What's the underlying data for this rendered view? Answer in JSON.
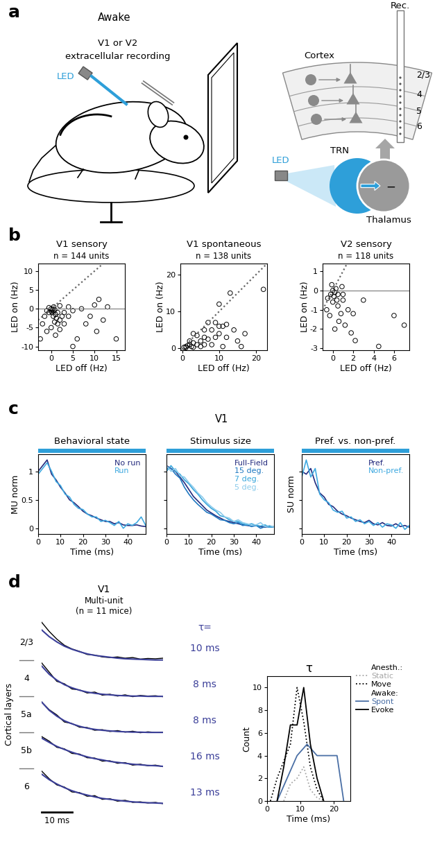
{
  "panel_labels": [
    "a",
    "b",
    "c",
    "d"
  ],
  "diagram": {
    "left": {
      "title": "Awake",
      "subtitle": "V1 or V2",
      "caption": "extracellular recording",
      "led": "LED"
    },
    "right": {
      "electrode": "Rec.",
      "cortex": "Cortex",
      "layers": [
        "2/3",
        "4",
        "5",
        "6"
      ],
      "led": "LED",
      "trn": "TRN",
      "thalamus": "Thalamus",
      "inhibition": "−"
    }
  },
  "chart_data": [
    {
      "type": "scatter",
      "title": "V1 sensory",
      "subtitle": "n = 144 units",
      "x_label": "LED off (Hz)",
      "y_label": "LED on (Hz)",
      "color": "#000000",
      "marker": "o",
      "x": [
        0,
        0.3,
        0.5,
        0.2,
        0.8,
        1,
        0.5,
        1.5,
        1.2,
        2,
        0.8,
        2.5,
        1.5,
        -0.5,
        -1,
        -1.5,
        -2,
        -2.5,
        -1,
        0,
        1,
        2,
        3,
        3,
        4,
        5,
        6,
        5,
        7,
        8,
        9,
        10,
        11,
        10.5,
        12,
        13,
        15,
        4,
        2,
        -0.5,
        0.6,
        0.1
      ],
      "values": [
        0,
        -0.2,
        -0.5,
        -1,
        -0.3,
        -1.5,
        -2,
        -1,
        -2.5,
        -3,
        -3.5,
        -2,
        -4,
        -1,
        -0.5,
        -2,
        -4,
        -8,
        -6,
        -5,
        -7,
        -5.5,
        -1,
        -4,
        -2,
        -10,
        -8,
        -0.5,
        0,
        -4,
        -2,
        1,
        2.5,
        -6,
        -3,
        0.5,
        -8,
        0.5,
        0.8,
        0.3,
        0.5,
        -0.6
      ],
      "hlines": [
        0
      ],
      "xlim": [
        -3,
        17
      ],
      "ylim": [
        -11,
        12
      ],
      "xticks": [
        0,
        5,
        10,
        15
      ],
      "yticks": [
        -10,
        -5,
        0,
        5,
        10
      ]
    },
    {
      "type": "scatter",
      "title": "V1 spontaneous",
      "subtitle": "n = 138 units",
      "x_label": "LED off (Hz)",
      "y_label": "LED on (Hz)",
      "color": "#000000",
      "marker": "o",
      "x": [
        0.5,
        1,
        1.5,
        2,
        1,
        2.5,
        3,
        3,
        4,
        5,
        5,
        6,
        6,
        7,
        7,
        8,
        8,
        9,
        9,
        10,
        10,
        11,
        12,
        12,
        13,
        14,
        15,
        16,
        17,
        22,
        4,
        2,
        6,
        3,
        10,
        11
      ],
      "values": [
        0.3,
        0.5,
        0.8,
        1,
        0.2,
        0.5,
        1.5,
        0.3,
        1,
        2,
        0.5,
        3,
        1,
        2.5,
        7,
        5,
        1,
        3,
        7,
        4,
        6,
        0.5,
        3,
        6.5,
        15,
        5,
        2,
        0.5,
        4,
        16,
        3.5,
        2,
        5,
        4,
        12,
        6
      ],
      "hlines": [],
      "xlim": [
        -0.5,
        23
      ],
      "ylim": [
        -0.5,
        23
      ],
      "xticks": [
        0,
        10,
        20
      ],
      "yticks": [
        0,
        10,
        20
      ]
    },
    {
      "type": "scatter",
      "title": "V2 sensory",
      "subtitle": "n = 118 units",
      "x_label": "LED off (Hz)",
      "y_label": "LED on (Hz)",
      "color": "#000000",
      "marker": "o",
      "x": [
        0,
        0.2,
        0.3,
        0.1,
        0.5,
        0.4,
        0,
        -0.2,
        -0.5,
        -0.6,
        -0.3,
        0.5,
        0.8,
        1,
        1.2,
        0.6,
        0.2,
        1.5,
        2,
        2.2,
        1.8,
        3,
        4.5,
        6,
        7,
        0.9,
        -0.1,
        1
      ],
      "values": [
        0,
        -0.1,
        0.1,
        -0.3,
        -0.2,
        -0.5,
        -0.6,
        -0.2,
        -0.4,
        -1,
        -1.3,
        -0.8,
        -1.2,
        -0.5,
        -1.8,
        -1.6,
        -2,
        -1,
        -1.2,
        -2.6,
        -2.2,
        -0.5,
        -2.9,
        -1.3,
        -1.8,
        0.2,
        0.3,
        -0.2
      ],
      "hlines": [
        0
      ],
      "xlim": [
        -1,
        7.5
      ],
      "ylim": [
        -3.1,
        1.4
      ],
      "xticks": [
        0,
        2,
        4,
        6
      ],
      "yticks": [
        -3,
        -2,
        -1,
        0,
        1
      ]
    },
    {
      "type": "line",
      "group_title": "V1",
      "title": "Behavioral state",
      "x_label": "Time (ms)",
      "y_label": "MU norm",
      "legend": "upper right",
      "x": [
        0,
        2,
        4,
        6,
        8,
        10,
        12,
        14,
        16,
        18,
        20,
        22,
        24,
        26,
        28,
        30,
        32,
        34,
        36,
        38,
        40,
        42,
        44,
        46,
        48
      ],
      "series": [
        {
          "name": "No run",
          "color": "#232a7d",
          "values": [
            1.0,
            1.1,
            1.2,
            0.95,
            0.85,
            0.72,
            0.62,
            0.5,
            0.45,
            0.38,
            0.3,
            0.25,
            0.22,
            0.18,
            0.15,
            0.12,
            0.12,
            0.08,
            0.1,
            0.06,
            0.05,
            0.05,
            0.06,
            0.04,
            0.03
          ]
        },
        {
          "name": "Run",
          "color": "#3fa9e0",
          "values": [
            0.95,
            1.05,
            1.15,
            1.0,
            0.82,
            0.75,
            0.6,
            0.55,
            0.42,
            0.35,
            0.33,
            0.25,
            0.2,
            0.2,
            0.12,
            0.14,
            0.1,
            0.05,
            0.12,
            0.0,
            0.08,
            0.05,
            0.1,
            0.2,
            0.05
          ]
        }
      ],
      "xlim": [
        0,
        48
      ],
      "ylim": [
        -0.1,
        1.3
      ],
      "xticks": [
        0,
        10,
        20,
        30,
        40
      ],
      "yticks": [
        0,
        0.5,
        1
      ]
    },
    {
      "type": "line",
      "title": "Stimulus size",
      "x_label": "Time (ms)",
      "legend": "upper right",
      "tick_labels": "x",
      "x": [
        0,
        2,
        4,
        6,
        8,
        10,
        12,
        14,
        16,
        18,
        20,
        22,
        24,
        26,
        28,
        30,
        32,
        34,
        36,
        38,
        40,
        42,
        44,
        46,
        48
      ],
      "series": [
        {
          "name": "Full-Field",
          "color": "#232a7d",
          "values": [
            1.1,
            1.05,
            1.0,
            0.9,
            0.8,
            0.68,
            0.56,
            0.48,
            0.4,
            0.32,
            0.27,
            0.22,
            0.18,
            0.14,
            0.12,
            0.1,
            0.08,
            0.06,
            0.05,
            0.04,
            0.05,
            0.03,
            0.02,
            0.04,
            0.02
          ]
        },
        {
          "name": "15 deg.",
          "color": "#1f78c1",
          "values": [
            1.05,
            1.05,
            0.95,
            0.88,
            0.72,
            0.6,
            0.5,
            0.42,
            0.35,
            0.28,
            0.25,
            0.2,
            0.15,
            0.14,
            0.1,
            0.08,
            0.1,
            0.05,
            0.06,
            0.03,
            0.05,
            0.0,
            0.03,
            0.02,
            0.02
          ]
        },
        {
          "name": "7 deg.",
          "color": "#38a6dc",
          "values": [
            1.0,
            1.1,
            1.0,
            0.95,
            0.85,
            0.78,
            0.68,
            0.6,
            0.5,
            0.42,
            0.35,
            0.3,
            0.22,
            0.2,
            0.15,
            0.12,
            0.12,
            0.08,
            0.06,
            0.08,
            0.05,
            0.04,
            0.06,
            0.02,
            0.03
          ]
        },
        {
          "name": "5 deg.",
          "color": "#8ccbeb",
          "values": [
            1.1,
            1.0,
            1.05,
            0.92,
            0.9,
            0.8,
            0.72,
            0.62,
            0.55,
            0.45,
            0.38,
            0.32,
            0.28,
            0.2,
            0.18,
            0.12,
            0.15,
            0.1,
            0.08,
            0.05,
            0.06,
            0.1,
            0.03,
            0.05,
            0.02
          ]
        }
      ],
      "xlim": [
        0,
        48
      ],
      "ylim": [
        -0.1,
        1.3
      ],
      "xticks": [
        0,
        10,
        20,
        30,
        40
      ],
      "yticks": [
        0,
        0.5,
        1
      ]
    },
    {
      "type": "line",
      "title": "Pref. vs. non-pref.",
      "x_label": "Time (ms)",
      "y_label": "SU norm",
      "legend": "upper right",
      "tick_labels": "x",
      "x": [
        0,
        2,
        4,
        6,
        8,
        10,
        12,
        14,
        16,
        18,
        20,
        22,
        24,
        26,
        28,
        30,
        32,
        34,
        36,
        38,
        40,
        42,
        44,
        46,
        48
      ],
      "series": [
        {
          "name": "Pref.",
          "color": "#232a7d",
          "values": [
            1.0,
            0.95,
            1.05,
            0.8,
            0.62,
            0.55,
            0.42,
            0.38,
            0.3,
            0.25,
            0.22,
            0.18,
            0.15,
            0.12,
            0.1,
            0.14,
            0.08,
            0.06,
            0.1,
            0.05,
            0.04,
            0.08,
            0.03,
            0.05,
            0.02
          ]
        },
        {
          "name": "Non-pref.",
          "color": "#3fa9e0",
          "values": [
            0.9,
            1.2,
            0.9,
            1.05,
            0.6,
            0.5,
            0.45,
            0.32,
            0.28,
            0.3,
            0.18,
            0.2,
            0.12,
            0.15,
            0.08,
            0.12,
            0.05,
            0.1,
            0.02,
            0.08,
            0.06,
            0.0,
            0.1,
            -0.02,
            0.05
          ]
        }
      ],
      "xlim": [
        0,
        48
      ],
      "ylim": [
        -0.1,
        1.3
      ],
      "xticks": [
        0,
        10,
        20,
        30,
        40
      ],
      "yticks": [
        0,
        0.5,
        1
      ]
    },
    {
      "type": "line",
      "title": "V1",
      "subtitle": [
        "Multi-unit",
        "(n = 11 mice)"
      ],
      "y_label": "Cortical layers",
      "tick_labels": false,
      "tau_header": "τ=",
      "tau_labels": [
        "10 ms",
        "8 ms",
        "8 ms",
        "16 ms",
        "13 ms"
      ],
      "scale_bar": {
        "length": 10,
        "label": "10 ms"
      },
      "x": [
        0,
        2.5,
        5,
        7.5,
        10,
        12.5,
        15,
        17.5,
        20,
        22.5,
        25,
        27.5,
        30,
        32.5,
        35,
        37.5,
        40
      ],
      "series": [
        {
          "name": "2/3",
          "color": "#000000",
          "values": [
            1.25,
            0.95,
            0.7,
            0.5,
            0.38,
            0.3,
            0.2,
            0.18,
            0.12,
            0.1,
            0.12,
            0.08,
            0.1,
            0.05,
            0.07,
            0.06,
            0.08
          ],
          "fit": {
            "color": "#3b3f99",
            "values": [
              1,
              0.78,
              0.61,
              0.47,
              0.37,
              0.29,
              0.22,
              0.17,
              0.14,
              0.11,
              0.08,
              0.06,
              0.05,
              0.04,
              0.03,
              0.02,
              0.02
            ]
          }
        },
        {
          "name": "4",
          "color": "#000000",
          "values": [
            1.1,
            0.8,
            0.5,
            0.42,
            0.25,
            0.22,
            0.12,
            0.15,
            0.05,
            0.08,
            0.02,
            0.06,
            0.0,
            0.04,
            0.02,
            0.03,
            0.0
          ],
          "fit": {
            "color": "#3b3f99",
            "values": [
              1,
              0.73,
              0.54,
              0.39,
              0.29,
              0.21,
              0.15,
              0.11,
              0.08,
              0.06,
              0.04,
              0.03,
              0.02,
              0.02,
              0.01,
              0.01,
              0.01
            ]
          }
        },
        {
          "name": "5a",
          "color": "#000000",
          "values": [
            1.0,
            0.75,
            0.58,
            0.35,
            0.3,
            0.18,
            0.17,
            0.08,
            0.1,
            0.04,
            0.07,
            0.02,
            0.05,
            0.0,
            0.03,
            0.01,
            0.02
          ],
          "fit": {
            "color": "#3b3f99",
            "values": [
              1,
              0.73,
              0.54,
              0.39,
              0.29,
              0.21,
              0.15,
              0.11,
              0.08,
              0.06,
              0.04,
              0.03,
              0.02,
              0.02,
              0.01,
              0.01,
              0.01
            ]
          }
        },
        {
          "name": "5b",
          "color": "#000000",
          "values": [
            1.05,
            0.9,
            0.7,
            0.65,
            0.5,
            0.48,
            0.36,
            0.35,
            0.25,
            0.26,
            0.18,
            0.2,
            0.12,
            0.15,
            0.1,
            0.12,
            0.07
          ],
          "fit": {
            "color": "#3b3f99",
            "values": [
              1,
              0.86,
              0.73,
              0.63,
              0.54,
              0.46,
              0.39,
              0.33,
              0.29,
              0.24,
              0.21,
              0.18,
              0.15,
              0.13,
              0.11,
              0.1,
              0.08
            ]
          }
        },
        {
          "name": "6",
          "color": "#000000",
          "values": [
            1.1,
            0.85,
            0.65,
            0.58,
            0.42,
            0.4,
            0.28,
            0.3,
            0.18,
            0.2,
            0.12,
            0.15,
            0.08,
            0.1,
            0.06,
            0.08,
            0.04
          ],
          "fit": {
            "color": "#3b3f99",
            "values": [
              1,
              0.82,
              0.68,
              0.56,
              0.46,
              0.38,
              0.32,
              0.26,
              0.21,
              0.18,
              0.15,
              0.12,
              0.1,
              0.08,
              0.07,
              0.06,
              0.05
            ]
          }
        }
      ],
      "xlim": [
        0,
        40
      ],
      "ylim": [
        -0.1,
        1.3
      ]
    },
    {
      "type": "line",
      "title": "τ",
      "x_label": "Time (ms)",
      "y_label": "Count",
      "series": [
        {
          "name": "Static",
          "group": "Anesth.:",
          "color": "#a6a6a6",
          "line_style": "dotted",
          "x": [
            5,
            7,
            9,
            11,
            13,
            15,
            17
          ],
          "values": [
            0,
            1.5,
            2,
            3,
            1,
            0.3,
            0
          ]
        },
        {
          "name": "Move",
          "group": "Anesth.:",
          "color": "#000000",
          "line_style": "dotted",
          "x": [
            1,
            3,
            5,
            7,
            9,
            11,
            13,
            15,
            17
          ],
          "values": [
            0,
            2,
            3.5,
            5,
            10,
            7,
            3,
            1,
            0
          ]
        },
        {
          "name": "Spont",
          "group": "Awake:",
          "color": "#4a6fa5",
          "line_style": "solid",
          "x": [
            3,
            6,
            9,
            12,
            15,
            18,
            21,
            23
          ],
          "values": [
            0,
            2,
            4,
            5,
            4,
            4,
            4,
            0
          ]
        },
        {
          "name": "Evoke",
          "group": "Awake:",
          "color": "#000000",
          "line_style": "solid",
          "x": [
            3,
            5,
            7,
            9,
            11,
            13,
            15,
            17
          ],
          "values": [
            0,
            3,
            6.7,
            6.7,
            10,
            5,
            2,
            0
          ]
        }
      ],
      "xlim": [
        0,
        25
      ],
      "ylim": [
        0,
        11
      ],
      "xticks": [
        0,
        10,
        20
      ],
      "yticks": [
        0,
        2,
        4,
        6,
        8,
        10
      ]
    }
  ]
}
